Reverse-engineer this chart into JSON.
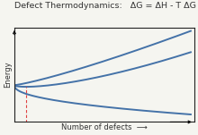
{
  "title": "Defect Thermodynamics:   ΔG = ΔH - T ΔG",
  "xlabel": "Number of defects",
  "ylabel": "Energy",
  "bg_color": "#f5f5f0",
  "curve_color": "#4472a8",
  "dashed_color": "#e04040",
  "title_fontsize": 6.8,
  "label_fontsize": 6.0,
  "figsize": [
    2.2,
    1.51
  ],
  "dpi": 100
}
